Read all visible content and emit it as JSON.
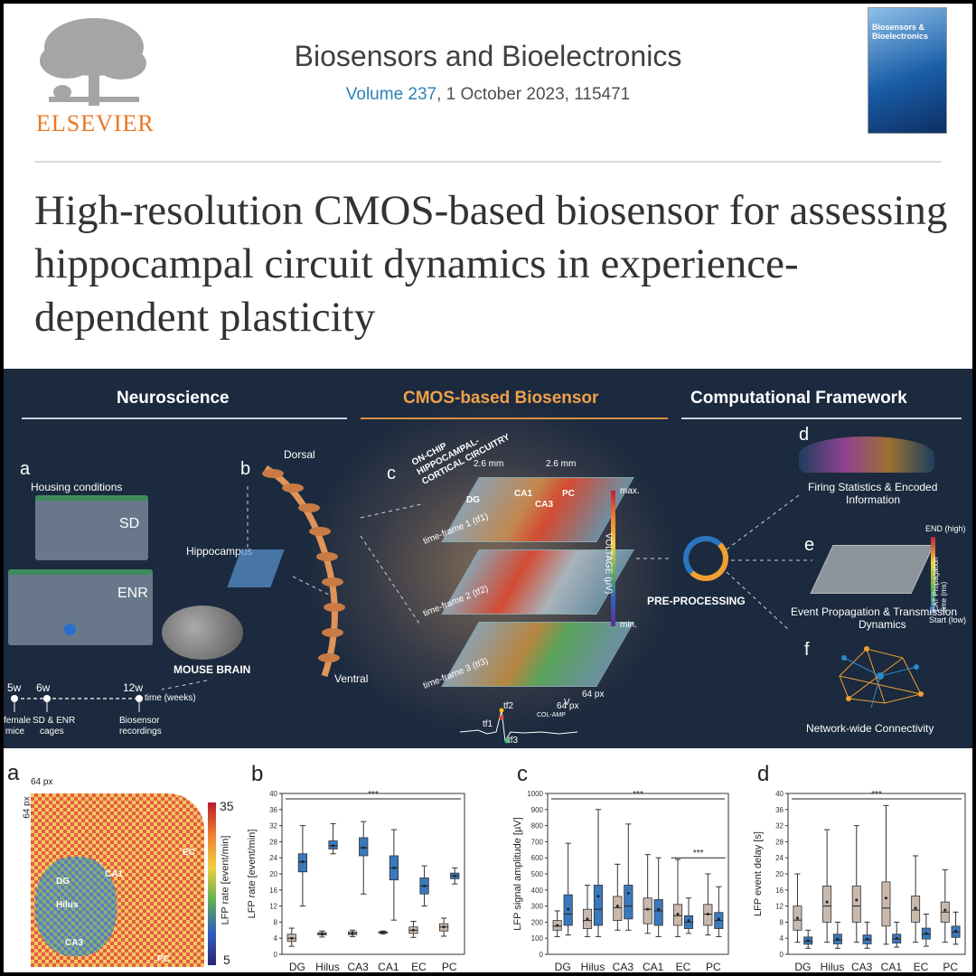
{
  "header": {
    "publisher": "ELSEVIER",
    "journal": "Biosensors and Bioelectronics",
    "volume_label": "Volume 237",
    "volume_rest": ", 1 October 2023, 115471",
    "cover_title": "Biosensors & Bioelectronics"
  },
  "article_title": "High-resolution CMOS-based biosensor for assessing hippocampal circuit dynamics in experience-dependent plasticity",
  "graphical_abstract": {
    "sections": [
      "Neuroscience",
      "CMOS-based Biosensor",
      "Computational Framework"
    ],
    "panel_letters": {
      "a": "a",
      "b": "b",
      "c": "c",
      "d": "d",
      "e": "e",
      "f": "f"
    },
    "housing_conditions": "Housing conditions",
    "sd": "SD",
    "enr": "ENR",
    "hippocampus": "Hippocampus",
    "mouse_brain": "MOUSE BRAIN",
    "dorsal": "Dorsal",
    "ventral": "Ventral",
    "timeline": {
      "t1": "5w",
      "t1_label_a": "female",
      "t1_label_b": "mice",
      "t2": "6w",
      "t2_label_a": "SD & ENR",
      "t2_label_b": "cages",
      "t3": "12w",
      "t3_label": "time (weeks)",
      "t3_label_a": "Biosensor",
      "t3_label_b": "recordings"
    },
    "on_chip": "ON-CHIP HIPPOCAMPAL-CORTICAL CIRCUITRY",
    "dim_a": "2.6 mm",
    "dim_b": "2.6 mm",
    "frames": [
      "time-frame 1 (tf1)",
      "time-frame 2 (tf2)",
      "time-frame 3 (tf3)"
    ],
    "regions": [
      "DG",
      "CA1",
      "CA3",
      "PC"
    ],
    "voltage_max": "max.",
    "voltage_min": "min.",
    "voltage_label": "VOLTAGE (μV)",
    "px_a": "64 px",
    "px_b": "64 px",
    "tf1": "tf1",
    "tf2": "tf2",
    "tf3": "tf3",
    "col_amp": "COL-AMP",
    "vout": "V",
    "pre_processing": "PRE-PROCESSING",
    "d_caption_a": "Firing Statistics & Encoded",
    "d_caption_b": "Information",
    "e_caption_a": "Event Propagation & Transmission",
    "e_caption_b": "Dynamics",
    "e_end": "END (high)",
    "e_start": "Start (low)",
    "e_scale": "CAT Propagation time (ms)",
    "f_caption": "Network-wide Connectivity"
  },
  "chart_a": {
    "letter": "a",
    "px_x": "64 px",
    "px_y": "64 px",
    "colorbar_label": "LFP rate [event/min]",
    "colorbar_max": "35",
    "colorbar_min": "5",
    "regions": [
      "DG",
      "Hilus",
      "CA1",
      "CA3",
      "EC",
      "PC"
    ]
  },
  "chart_data": [
    {
      "type": "box",
      "letter": "b",
      "ylabel": "LFP rate [event/min]",
      "ylim": [
        0,
        40
      ],
      "yticks": [
        0,
        4,
        8,
        12,
        16,
        20,
        24,
        28,
        32,
        36,
        40
      ],
      "categories": [
        "DG",
        "Hilus",
        "CA3",
        "CA1",
        "EC",
        "PC"
      ],
      "significance": "***",
      "series": [
        {
          "color": "#c9b8ac",
          "boxes": [
            {
              "min": 2,
              "q1": 3.2,
              "median": 4,
              "q3": 5,
              "max": 6.5,
              "mean": 4
            },
            {
              "min": 4.3,
              "q1": 4.8,
              "median": 5.1,
              "q3": 5.4,
              "max": 5.8,
              "mean": 5
            },
            {
              "min": 4.4,
              "q1": 4.9,
              "median": 5.2,
              "q3": 5.6,
              "max": 6,
              "mean": 5.2
            },
            {
              "min": 5.1,
              "q1": 5.3,
              "median": 5.4,
              "q3": 5.6,
              "max": 5.8,
              "mean": 5.4
            },
            {
              "min": 4.2,
              "q1": 5.2,
              "median": 6,
              "q3": 6.8,
              "max": 8.2,
              "mean": 6
            },
            {
              "min": 4.5,
              "q1": 5.8,
              "median": 6.8,
              "q3": 7.6,
              "max": 9,
              "mean": 6.8
            }
          ]
        },
        {
          "color": "#3b78bd",
          "boxes": [
            {
              "min": 12,
              "q1": 20.5,
              "median": 23,
              "q3": 25,
              "max": 32,
              "mean": 23
            },
            {
              "min": 25,
              "q1": 26.2,
              "median": 27,
              "q3": 28.2,
              "max": 32.5,
              "mean": 27
            },
            {
              "min": 15,
              "q1": 24.5,
              "median": 26.5,
              "q3": 29,
              "max": 33,
              "mean": 26.5
            },
            {
              "min": 8.5,
              "q1": 18.5,
              "median": 21.5,
              "q3": 24.5,
              "max": 31,
              "mean": 21.5
            },
            {
              "min": 12,
              "q1": 15,
              "median": 17,
              "q3": 19,
              "max": 22,
              "mean": 17
            },
            {
              "min": 17.5,
              "q1": 18.8,
              "median": 19.5,
              "q3": 20.2,
              "max": 21.5,
              "mean": 19.5
            }
          ]
        }
      ]
    },
    {
      "type": "box",
      "letter": "c",
      "ylabel": "LFP signal amplitude [µV]",
      "ylim": [
        0,
        1000
      ],
      "yticks": [
        0,
        100,
        200,
        300,
        400,
        500,
        600,
        700,
        800,
        900,
        1000
      ],
      "categories": [
        "DG",
        "Hilus",
        "CA3",
        "CA1",
        "EC",
        "PC"
      ],
      "significance": "***",
      "significance_2": "***",
      "series": [
        {
          "color": "#c9b8ac",
          "boxes": [
            {
              "min": 110,
              "q1": 150,
              "median": 175,
              "q3": 210,
              "max": 270,
              "mean": 180
            },
            {
              "min": 110,
              "q1": 160,
              "median": 210,
              "q3": 280,
              "max": 430,
              "mean": 220
            },
            {
              "min": 150,
              "q1": 210,
              "median": 290,
              "q3": 360,
              "max": 560,
              "mean": 300
            },
            {
              "min": 130,
              "q1": 190,
              "median": 280,
              "q3": 350,
              "max": 620,
              "mean": 280
            },
            {
              "min": 110,
              "q1": 180,
              "median": 240,
              "q3": 310,
              "max": 590,
              "mean": 250
            },
            {
              "min": 120,
              "q1": 180,
              "median": 250,
              "q3": 310,
              "max": 500,
              "mean": 250
            }
          ]
        },
        {
          "color": "#3b78bd",
          "boxes": [
            {
              "min": 120,
              "q1": 180,
              "median": 250,
              "q3": 370,
              "max": 690,
              "mean": 280
            },
            {
              "min": 110,
              "q1": 180,
              "median": 280,
              "q3": 430,
              "max": 900,
              "mean": 360
            },
            {
              "min": 150,
              "q1": 220,
              "median": 300,
              "q3": 430,
              "max": 810,
              "mean": 380
            },
            {
              "min": 110,
              "q1": 180,
              "median": 270,
              "q3": 340,
              "max": 600,
              "mean": 280
            },
            {
              "min": 130,
              "q1": 160,
              "median": 200,
              "q3": 240,
              "max": 350,
              "mean": 210
            },
            {
              "min": 110,
              "q1": 160,
              "median": 210,
              "q3": 260,
              "max": 420,
              "mean": 220
            }
          ]
        }
      ]
    },
    {
      "type": "box",
      "letter": "d",
      "ylabel": "LFP event delay [s]",
      "ylim": [
        0,
        40
      ],
      "yticks": [
        0,
        4,
        8,
        12,
        16,
        20,
        24,
        28,
        32,
        36,
        40
      ],
      "categories": [
        "DG",
        "Hilus",
        "CA3",
        "CA1",
        "EC",
        "PC"
      ],
      "significance": "***",
      "series": [
        {
          "color": "#c9b8ac",
          "boxes": [
            {
              "min": 3,
              "q1": 6,
              "median": 8.5,
              "q3": 12,
              "max": 20,
              "mean": 9
            },
            {
              "min": 3,
              "q1": 8,
              "median": 12,
              "q3": 17,
              "max": 31,
              "mean": 13
            },
            {
              "min": 3,
              "q1": 8,
              "median": 12,
              "q3": 17,
              "max": 32,
              "mean": 13.5
            },
            {
              "min": 2.5,
              "q1": 7,
              "median": 11.5,
              "q3": 18,
              "max": 37,
              "mean": 14
            },
            {
              "min": 3,
              "q1": 8,
              "median": 11,
              "q3": 14.5,
              "max": 24.5,
              "mean": 11.5
            },
            {
              "min": 3,
              "q1": 8,
              "median": 10.5,
              "q3": 13,
              "max": 21,
              "mean": 11
            }
          ]
        },
        {
          "color": "#3b78bd",
          "boxes": [
            {
              "min": 1.5,
              "q1": 2.5,
              "median": 3.2,
              "q3": 4.3,
              "max": 6,
              "mean": 3.4
            },
            {
              "min": 1.5,
              "q1": 2.6,
              "median": 3.5,
              "q3": 5,
              "max": 8,
              "mean": 3.8
            },
            {
              "min": 1.5,
              "q1": 2.6,
              "median": 3.6,
              "q3": 4.8,
              "max": 8,
              "mean": 3.8
            },
            {
              "min": 1.8,
              "q1": 2.8,
              "median": 3.8,
              "q3": 5,
              "max": 8,
              "mean": 4
            },
            {
              "min": 2,
              "q1": 3.8,
              "median": 5,
              "q3": 6.5,
              "max": 10,
              "mean": 5.2
            },
            {
              "min": 2.5,
              "q1": 4.2,
              "median": 5.5,
              "q3": 7,
              "max": 10.5,
              "mean": 5.8
            }
          ]
        }
      ]
    }
  ]
}
